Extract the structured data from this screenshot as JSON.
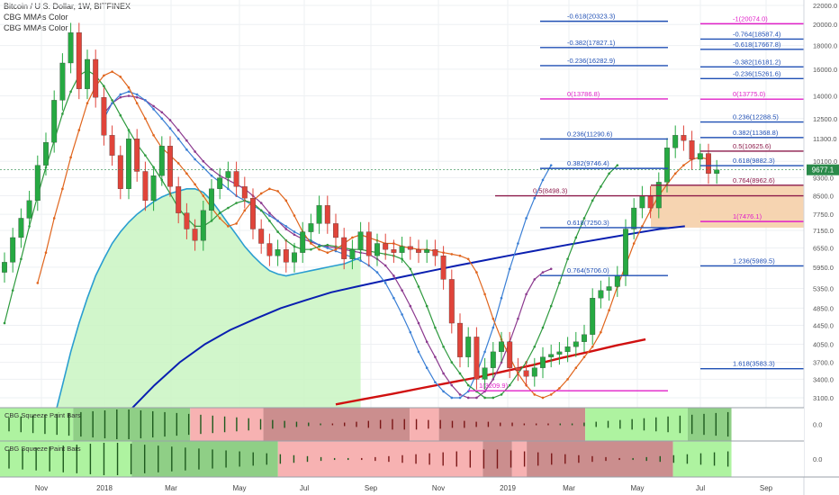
{
  "header": {
    "title": "Bitcoin / U.S. Dollar, 1W, BITFINEX",
    "indicator_1": "CBG MMAs Color",
    "indicator_2": "CBG MMAs Color"
  },
  "chart_data": {
    "type": "candlestick",
    "symbol": "Bitcoin / U.S. Dollar",
    "interval": "1W",
    "exchange": "BITFINEX",
    "y_scale": "log",
    "y_ticks": [
      3100,
      3400,
      3700,
      4050,
      4450,
      4850,
      5350,
      5950,
      6550,
      7150,
      7750,
      8500,
      9300,
      10100,
      11300,
      12500,
      14000,
      16000,
      18000,
      20000,
      22000
    ],
    "x_ticks": [
      "Nov",
      "2018",
      "Mar",
      "May",
      "Jul",
      "Sep",
      "Nov",
      "2019",
      "Mar",
      "May",
      "Jul",
      "Sep"
    ],
    "last_price": "9677.1",
    "candles": [
      [
        5800,
        6100
      ],
      [
        6100,
        6900
      ],
      [
        6900,
        7600
      ],
      [
        7600,
        8300
      ],
      [
        8300,
        9900
      ],
      [
        9900,
        11100
      ],
      [
        11100,
        13700
      ],
      [
        13700,
        16500
      ],
      [
        16500,
        19200
      ],
      [
        19200,
        14500
      ],
      [
        14500,
        16800
      ],
      [
        16800,
        13900
      ],
      [
        13900,
        11500
      ],
      [
        11500,
        10400
      ],
      [
        10400,
        8800
      ],
      [
        8800,
        11300
      ],
      [
        11300,
        9600
      ],
      [
        9600,
        8300
      ],
      [
        8300,
        9400
      ],
      [
        9400,
        10900
      ],
      [
        10900,
        8900
      ],
      [
        8900,
        7800
      ],
      [
        7800,
        7200
      ],
      [
        7200,
        6800
      ],
      [
        6800,
        7900
      ],
      [
        7900,
        8800
      ],
      [
        8800,
        9300
      ],
      [
        9300,
        9600
      ],
      [
        9600,
        8900
      ],
      [
        8900,
        8400
      ],
      [
        8400,
        7200
      ],
      [
        7200,
        6700
      ],
      [
        6700,
        6300
      ],
      [
        6300,
        6500
      ],
      [
        6500,
        6100
      ],
      [
        6100,
        6400
      ],
      [
        6400,
        7100
      ],
      [
        7100,
        7400
      ],
      [
        7400,
        8100
      ],
      [
        8100,
        7400
      ],
      [
        7400,
        6900
      ],
      [
        6900,
        6200
      ],
      [
        6200,
        6500
      ],
      [
        6500,
        7100
      ],
      [
        7100,
        6300
      ],
      [
        6300,
        6700
      ],
      [
        6700,
        6500
      ],
      [
        6500,
        6400
      ],
      [
        6400,
        6600
      ],
      [
        6600,
        6500
      ],
      [
        6500,
        6400
      ],
      [
        6400,
        6500
      ],
      [
        6500,
        6300
      ],
      [
        6300,
        5600
      ],
      [
        5600,
        4500
      ],
      [
        4500,
        3800
      ],
      [
        3800,
        4200
      ],
      [
        4200,
        3400
      ],
      [
        3400,
        3600
      ],
      [
        3600,
        3900
      ],
      [
        3900,
        4100
      ],
      [
        4100,
        3600
      ],
      [
        3600,
        3550
      ],
      [
        3550,
        3450
      ],
      [
        3450,
        3600
      ],
      [
        3600,
        3800
      ],
      [
        3800,
        3850
      ],
      [
        3850,
        3900
      ],
      [
        3900,
        4000
      ],
      [
        4000,
        4100
      ],
      [
        4100,
        4250
      ],
      [
        4250,
        5100
      ],
      [
        5100,
        5300
      ],
      [
        5300,
        5400
      ],
      [
        5400,
        5700
      ],
      [
        5700,
        7200
      ],
      [
        7200,
        8000
      ],
      [
        8000,
        8500
      ],
      [
        8500,
        8000
      ],
      [
        8000,
        9100
      ],
      [
        9100,
        10800
      ],
      [
        10800,
        11500
      ],
      [
        11500,
        11200
      ],
      [
        11200,
        10200
      ],
      [
        10200,
        10500
      ],
      [
        10500,
        9500
      ],
      [
        9500,
        9677
      ]
    ],
    "ma_fast_orange": [
      5500,
      6400,
      7600,
      8800,
      10300,
      11800,
      13500,
      14700,
      15500,
      15800,
      15400,
      14600,
      13500,
      12500,
      11500,
      10800,
      10400,
      10000,
      9500,
      9000,
      8500,
      8000,
      7600,
      7300,
      7400,
      7900,
      8300,
      8600,
      8800,
      8700,
      8300,
      7700,
      7100,
      6700,
      6500,
      6400,
      6500,
      6700,
      6900,
      7000,
      6900,
      6800,
      6700,
      6700,
      6600,
      6550,
      6500,
      6500,
      6450,
      6400,
      6350,
      6300,
      6200,
      5800,
      5200,
      4600,
      4150,
      3800,
      3500,
      3300,
      3150,
      3100,
      3150,
      3250,
      3400,
      3600,
      3800,
      4000,
      4300,
      4800,
      5400,
      6000,
      6700,
      7300,
      7900,
      8500,
      9000,
      9500,
      9900,
      10200,
      10300,
      10200
    ],
    "ma_green": [
      4500,
      5300,
      6200,
      7300,
      8500,
      9800,
      11200,
      12800,
      14300,
      15500,
      15900,
      15500,
      14700,
      13700,
      12700,
      11800,
      11000,
      10400,
      9800,
      9200,
      8600,
      8000,
      7600,
      7300,
      7300,
      7500,
      7800,
      8000,
      8200,
      8300,
      8200,
      7900,
      7500,
      7100,
      6800,
      6600,
      6500,
      6500,
      6600,
      6650,
      6600,
      6550,
      6500,
      6500,
      6450,
      6400,
      6350,
      6300,
      6200,
      5900,
      5400,
      4900,
      4400,
      4000,
      3700,
      3500,
      3300,
      3200,
      3100,
      3100,
      3150,
      3300,
      3500,
      3700,
      4000,
      4400,
      4900,
      5500,
      6200,
      6900,
      7600,
      8300,
      8900,
      9500,
      9900
    ],
    "ma_purple": [
      12800,
      13500,
      13900,
      14000,
      13900,
      13700,
      13300,
      12900,
      12400,
      11800,
      11200,
      10600,
      10100,
      9700,
      9400,
      9200,
      9000,
      8800,
      8500,
      8200,
      7800,
      7500,
      7200,
      7000,
      6850,
      6750,
      6650,
      6600,
      6550,
      6500,
      6450,
      6400,
      6350,
      6200,
      6000,
      5700,
      5300,
      4900,
      4500,
      4100,
      3800,
      3500,
      3300,
      3150,
      3100,
      3100,
      3200,
      3400,
      3700,
      4100,
      4600,
      5200,
      5600,
      5800,
      5900
    ],
    "ma_blue": [
      12500,
      13500,
      14100,
      14300,
      14100,
      13700,
      13100,
      12500,
      11900,
      11300,
      10700,
      10200,
      9800,
      9400,
      9100,
      8800,
      8500,
      8300,
      8100,
      7900,
      7700,
      7500,
      7300,
      7100,
      6950,
      6800,
      6650,
      6550,
      6450,
      6350,
      6250,
      6150,
      6000,
      5800,
      5500,
      5100,
      4700,
      4300,
      3900,
      3600,
      3350,
      3200,
      3100,
      3100,
      3200,
      3500,
      3900,
      4400,
      5100,
      5900,
      6700,
      7600,
      8400,
      9200,
      9900
    ],
    "ma_teal": [
      2800,
      3300,
      3900,
      4500,
      5100,
      5700,
      6200,
      6700,
      7100,
      7450,
      7750,
      8000,
      8250,
      8450,
      8600,
      8700,
      8800,
      8800,
      8650,
      8300,
      7850,
      7400,
      7000,
      6600,
      6300,
      6050,
      5850,
      5750,
      5700,
      5750,
      5800,
      5850,
      5900,
      5950,
      6000,
      6050,
      6150,
      6250
    ],
    "ma_navy": [
      2500,
      2900,
      3300,
      3700,
      4050,
      4350,
      4600,
      4850,
      5050,
      5250,
      5400,
      5550,
      5700,
      5850,
      6000,
      6150,
      6300,
      6450,
      6600,
      6750,
      6900,
      7050,
      7200,
      7300
    ],
    "ma_red": [
      3000,
      3080,
      3160,
      3250,
      3340,
      3430,
      3540,
      3650,
      3780,
      3900,
      4030,
      4150
    ],
    "fib_levels": [
      {
        "label": "-0.618(20323.3)"
      },
      {
        "label": "-0.382(17827.1)"
      },
      {
        "label": "-0.236(16282.9)"
      },
      {
        "label": "0(13786.8)"
      },
      {
        "label": "0.236(11290.6)"
      },
      {
        "label": "0.382(9746.4)"
      },
      {
        "label": "0.5(8498.3)"
      },
      {
        "label": "0.618(7250.3)"
      },
      {
        "label": "0.764(5706.0)"
      },
      {
        "label": "1(3209.9)"
      },
      {
        "label": "-1(20074.0)"
      },
      {
        "label": "-0.764(18587.4)"
      },
      {
        "label": "-0.618(17667.8)"
      },
      {
        "label": "-0.382(16181.2)"
      },
      {
        "label": "-0.236(15261.6)"
      },
      {
        "label": "0(13775.0)"
      },
      {
        "label": "0.236(12288.5)"
      },
      {
        "label": "0.382(11368.8)"
      },
      {
        "label": "0.5(10625.6)"
      },
      {
        "label": "0.618(9882.3)"
      },
      {
        "label": "0.764(8962.6)"
      },
      {
        "label": "1(7476.1)"
      },
      {
        "label": "1.236(5989.5)"
      },
      {
        "label": "1.618(3583.3)"
      }
    ],
    "colors": {
      "bull": "#26a942",
      "bear": "#e0443a",
      "fib_blue": "#1f4fb4",
      "fib_magenta": "#e020c8",
      "ma_orange": "#e0651d",
      "ma_green": "#2e9a3e",
      "ma_purple": "#8c3a8f",
      "ma_blue": "#3a7fd5",
      "ma_teal": "#2a9ed0",
      "ma_navy": "#0a1fb0",
      "ma_red": "#d01010",
      "cloud": "#c9f5c2",
      "zone": "#f5cfa8"
    }
  },
  "panel1": {
    "label": "CBG Squeeze Paint Bars",
    "value_label": "0.0",
    "segments": [
      [
        "#aef3a0",
        0,
        10
      ],
      [
        "#8fcf86",
        10,
        26
      ],
      [
        "#f7b2b2",
        26,
        36
      ],
      [
        "#cb8e8e",
        36,
        56
      ],
      [
        "#f7b2b2",
        56,
        60
      ],
      [
        "#cb8e8e",
        60,
        80
      ],
      [
        "#aef3a0",
        80,
        94
      ],
      [
        "#8fcf86",
        94,
        100
      ]
    ],
    "histogram": [
      8,
      9,
      10,
      11,
      12,
      13,
      14,
      15,
      16,
      17,
      17,
      16,
      15,
      14,
      13,
      12,
      11,
      10,
      9,
      8,
      7,
      6,
      5,
      4,
      3,
      2,
      1,
      -1,
      -2,
      -3,
      -4,
      -5,
      -6,
      -6,
      -6,
      -5,
      -5,
      -4,
      -4,
      -3,
      -3,
      -2,
      -2,
      -1,
      -1,
      -1,
      1,
      1,
      2,
      3,
      4,
      5,
      6,
      7,
      8,
      9,
      10,
      11,
      12,
      13,
      14
    ]
  },
  "panel2": {
    "label": "CBG Squeeze Paint Bars",
    "value_label": "0.0",
    "segments": [
      [
        "#aef3a0",
        0,
        18
      ],
      [
        "#8fcf86",
        18,
        38
      ],
      [
        "#f7b2b2",
        38,
        66
      ],
      [
        "#cb8e8e",
        66,
        70
      ],
      [
        "#f7b2b2",
        70,
        72
      ],
      [
        "#cb8e8e",
        72,
        92
      ],
      [
        "#aef3a0",
        92,
        100
      ]
    ],
    "histogram": [
      10,
      11,
      12,
      13,
      14,
      15,
      16,
      17,
      17,
      16,
      15,
      14,
      13,
      12,
      11,
      10,
      9,
      8,
      7,
      6,
      5,
      4,
      3,
      2,
      1,
      1,
      -1,
      -2,
      -3,
      -4,
      -5,
      -6,
      -7,
      -8,
      -9,
      -10,
      -10,
      -9,
      -8,
      -7,
      -6,
      -5,
      -4,
      -3,
      -2,
      -1,
      1,
      2,
      3,
      4,
      5,
      6,
      7,
      8
    ]
  }
}
